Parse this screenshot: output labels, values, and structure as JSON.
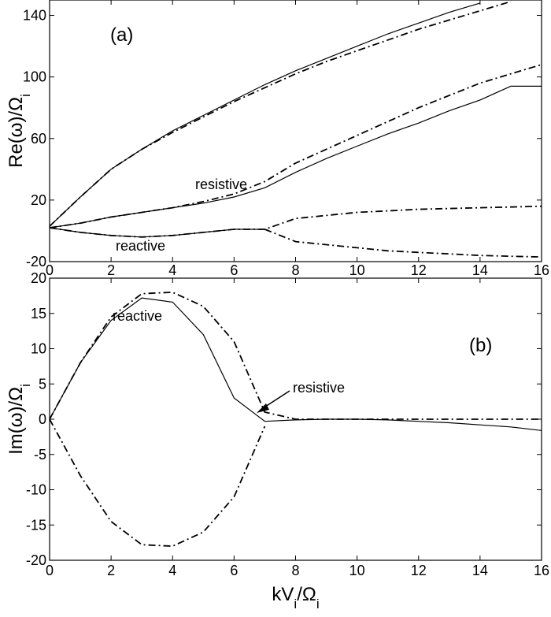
{
  "chart_data": [
    {
      "type": "line",
      "panel_label": "(a)",
      "ylabel": [
        "Re(ω)/Ω",
        "i"
      ],
      "annotations": [
        "resistive",
        "reactive"
      ],
      "x": [
        0,
        1,
        2,
        3,
        4,
        5,
        6,
        7,
        8,
        9,
        10,
        11,
        12,
        13,
        14,
        15,
        16
      ],
      "xlim": [
        0,
        16
      ],
      "xticks": [
        0,
        2,
        4,
        6,
        8,
        10,
        12,
        14,
        16
      ],
      "ylim": [
        -20,
        150
      ],
      "yticks": [
        -20,
        20,
        60,
        100,
        140
      ],
      "series": [
        {
          "color": "#000000",
          "style": "solid",
          "values": [
            3,
            22,
            40,
            53,
            65,
            75,
            85,
            95,
            104,
            112,
            120,
            128,
            135,
            142,
            148,
            null,
            null
          ]
        },
        {
          "color": "#000000",
          "style": "dashdot",
          "values": [
            3,
            22,
            40,
            53,
            64,
            74,
            84,
            93,
            102,
            110,
            117,
            124,
            131,
            137,
            143,
            149,
            null
          ]
        },
        {
          "color": "#000000",
          "style": "solid",
          "values": [
            2,
            5,
            9,
            12,
            15,
            18,
            22,
            28,
            38,
            47,
            55,
            63,
            70,
            78,
            85,
            94,
            94
          ]
        },
        {
          "color": "#000000",
          "style": "dashdot",
          "values": [
            2,
            5,
            9,
            12,
            15,
            19,
            24,
            32,
            44,
            53,
            62,
            71,
            80,
            88,
            96,
            102,
            108
          ]
        },
        {
          "color": "#000000",
          "style": "solid",
          "values": [
            2,
            -1,
            -3,
            -4,
            -3,
            -1,
            1,
            1,
            null,
            null,
            null,
            null,
            null,
            null,
            null,
            null,
            null
          ]
        },
        {
          "color": "#000000",
          "style": "dashdot",
          "values": [
            2,
            -1,
            -3,
            -4,
            -3,
            -1,
            1,
            1,
            8,
            10,
            12,
            13,
            14,
            14.5,
            15,
            15.5,
            16
          ]
        },
        {
          "color": "#000000",
          "style": "dashdot",
          "values": [
            null,
            null,
            null,
            null,
            null,
            null,
            null,
            1,
            -7,
            -9,
            -11,
            -13,
            -14,
            -15,
            -16,
            -16.5,
            -17
          ]
        }
      ]
    },
    {
      "type": "line",
      "panel_label": "(b)",
      "ylabel": [
        "Im(ω)/Ω",
        "i"
      ],
      "xlabel": [
        "kV",
        "i",
        "/Ω",
        "i"
      ],
      "annotations": [
        "reactive",
        "resistive"
      ],
      "x": [
        0,
        1,
        2,
        3,
        4,
        5,
        6,
        7,
        8,
        9,
        10,
        11,
        12,
        13,
        14,
        15,
        16
      ],
      "xlim": [
        0,
        16
      ],
      "xticks": [
        0,
        2,
        4,
        6,
        8,
        10,
        12,
        14,
        16
      ],
      "ylim": [
        -20,
        20
      ],
      "yticks": [
        -20,
        -15,
        -10,
        -5,
        0,
        5,
        10,
        15,
        20
      ],
      "series": [
        {
          "color": "#000000",
          "style": "solid",
          "values": [
            0,
            8,
            14,
            17.2,
            16.6,
            12,
            3,
            -0.3,
            -0.1,
            0,
            0,
            -0.1,
            -0.3,
            -0.5,
            -0.8,
            -1.1,
            -1.6
          ]
        },
        {
          "color": "#000000",
          "style": "dashdot",
          "values": [
            0,
            8,
            14.5,
            17.8,
            18,
            16,
            11,
            1,
            0,
            0,
            0,
            0,
            0,
            0,
            0,
            0,
            0
          ]
        },
        {
          "color": "#000000",
          "style": "dashdot",
          "values": [
            0,
            -8,
            -14.5,
            -17.8,
            -18,
            -16,
            -11,
            -1,
            null,
            null,
            null,
            null,
            null,
            null,
            null,
            null,
            null
          ]
        }
      ]
    }
  ]
}
